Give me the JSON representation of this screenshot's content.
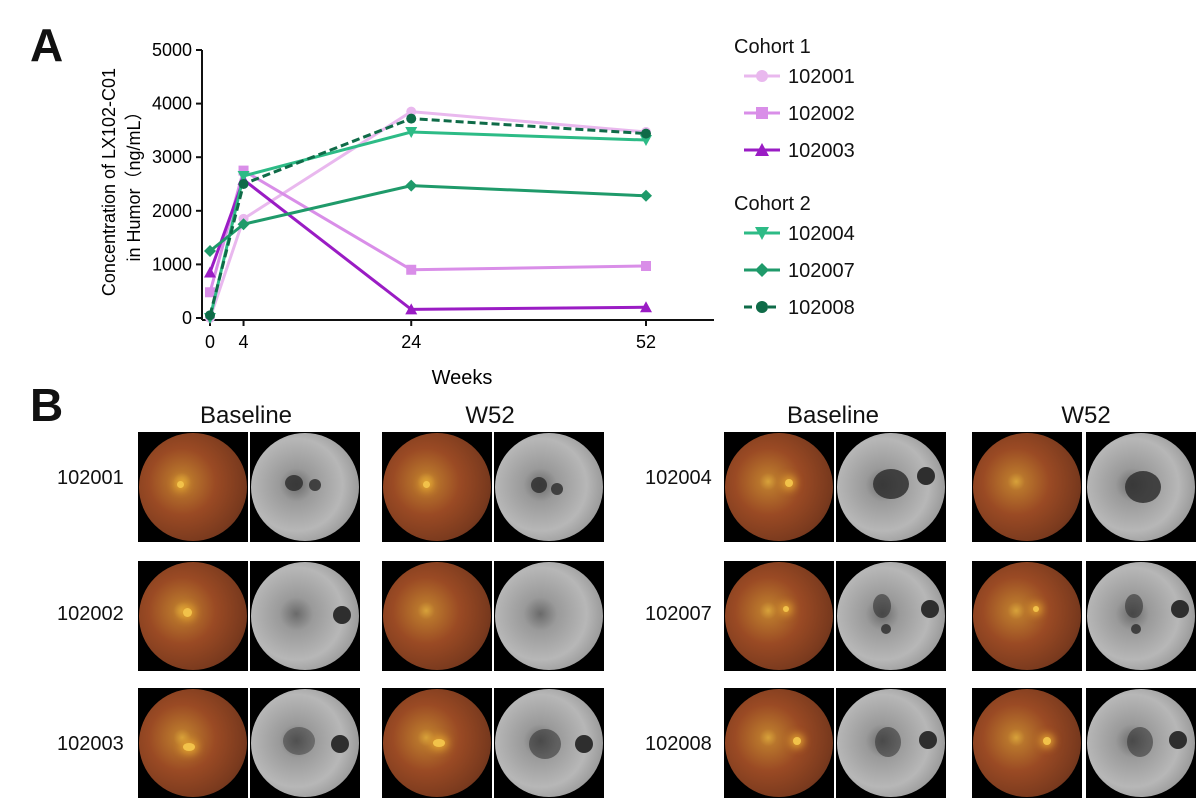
{
  "panel_labels": {
    "a": "A",
    "b": "B"
  },
  "chart_data": {
    "type": "line",
    "title": "",
    "xlabel": "Weeks",
    "ylabel_line1": "Concentration of LX102-C01",
    "ylabel_line2": "in Humor（ng/mL）",
    "x": [
      0,
      4,
      24,
      52
    ],
    "xticks": [
      "0",
      "4",
      "24",
      "52"
    ],
    "xlim": [
      -1,
      58
    ],
    "ylim": [
      0,
      5000
    ],
    "yticks": [
      "0",
      "1000",
      "2000",
      "3000",
      "4000",
      "5000"
    ],
    "cohorts": [
      {
        "name": "Cohort 1",
        "series": [
          {
            "name": "102001",
            "color": "#e9b8ee",
            "marker": "circle",
            "dashed": false,
            "values": [
              0,
              1850,
              3850,
              3470
            ]
          },
          {
            "name": "102002",
            "color": "#d98ee8",
            "marker": "square",
            "dashed": false,
            "values": [
              480,
              2750,
              900,
              970
            ]
          },
          {
            "name": "102003",
            "color": "#9a1cc4",
            "marker": "triangle-up",
            "dashed": false,
            "values": [
              850,
              2580,
              160,
              200
            ]
          }
        ]
      },
      {
        "name": "Cohort 2",
        "series": [
          {
            "name": "102004",
            "color": "#2dbb86",
            "marker": "triangle-down",
            "dashed": false,
            "values": [
              0,
              2650,
              3470,
              3320
            ]
          },
          {
            "name": "102007",
            "color": "#1f9a6a",
            "marker": "diamond",
            "dashed": false,
            "values": [
              1250,
              1750,
              2470,
              2280
            ]
          },
          {
            "name": "102008",
            "color": "#0f6b48",
            "marker": "circle",
            "dashed": true,
            "values": [
              50,
              2500,
              3720,
              3440
            ]
          }
        ]
      }
    ]
  },
  "panel_b": {
    "condition_titles": [
      "Baseline",
      "W52",
      "Baseline",
      "W52"
    ],
    "left_patients": [
      "102001",
      "102002",
      "102003"
    ],
    "right_patients": [
      "102004",
      "102007",
      "102008"
    ]
  }
}
